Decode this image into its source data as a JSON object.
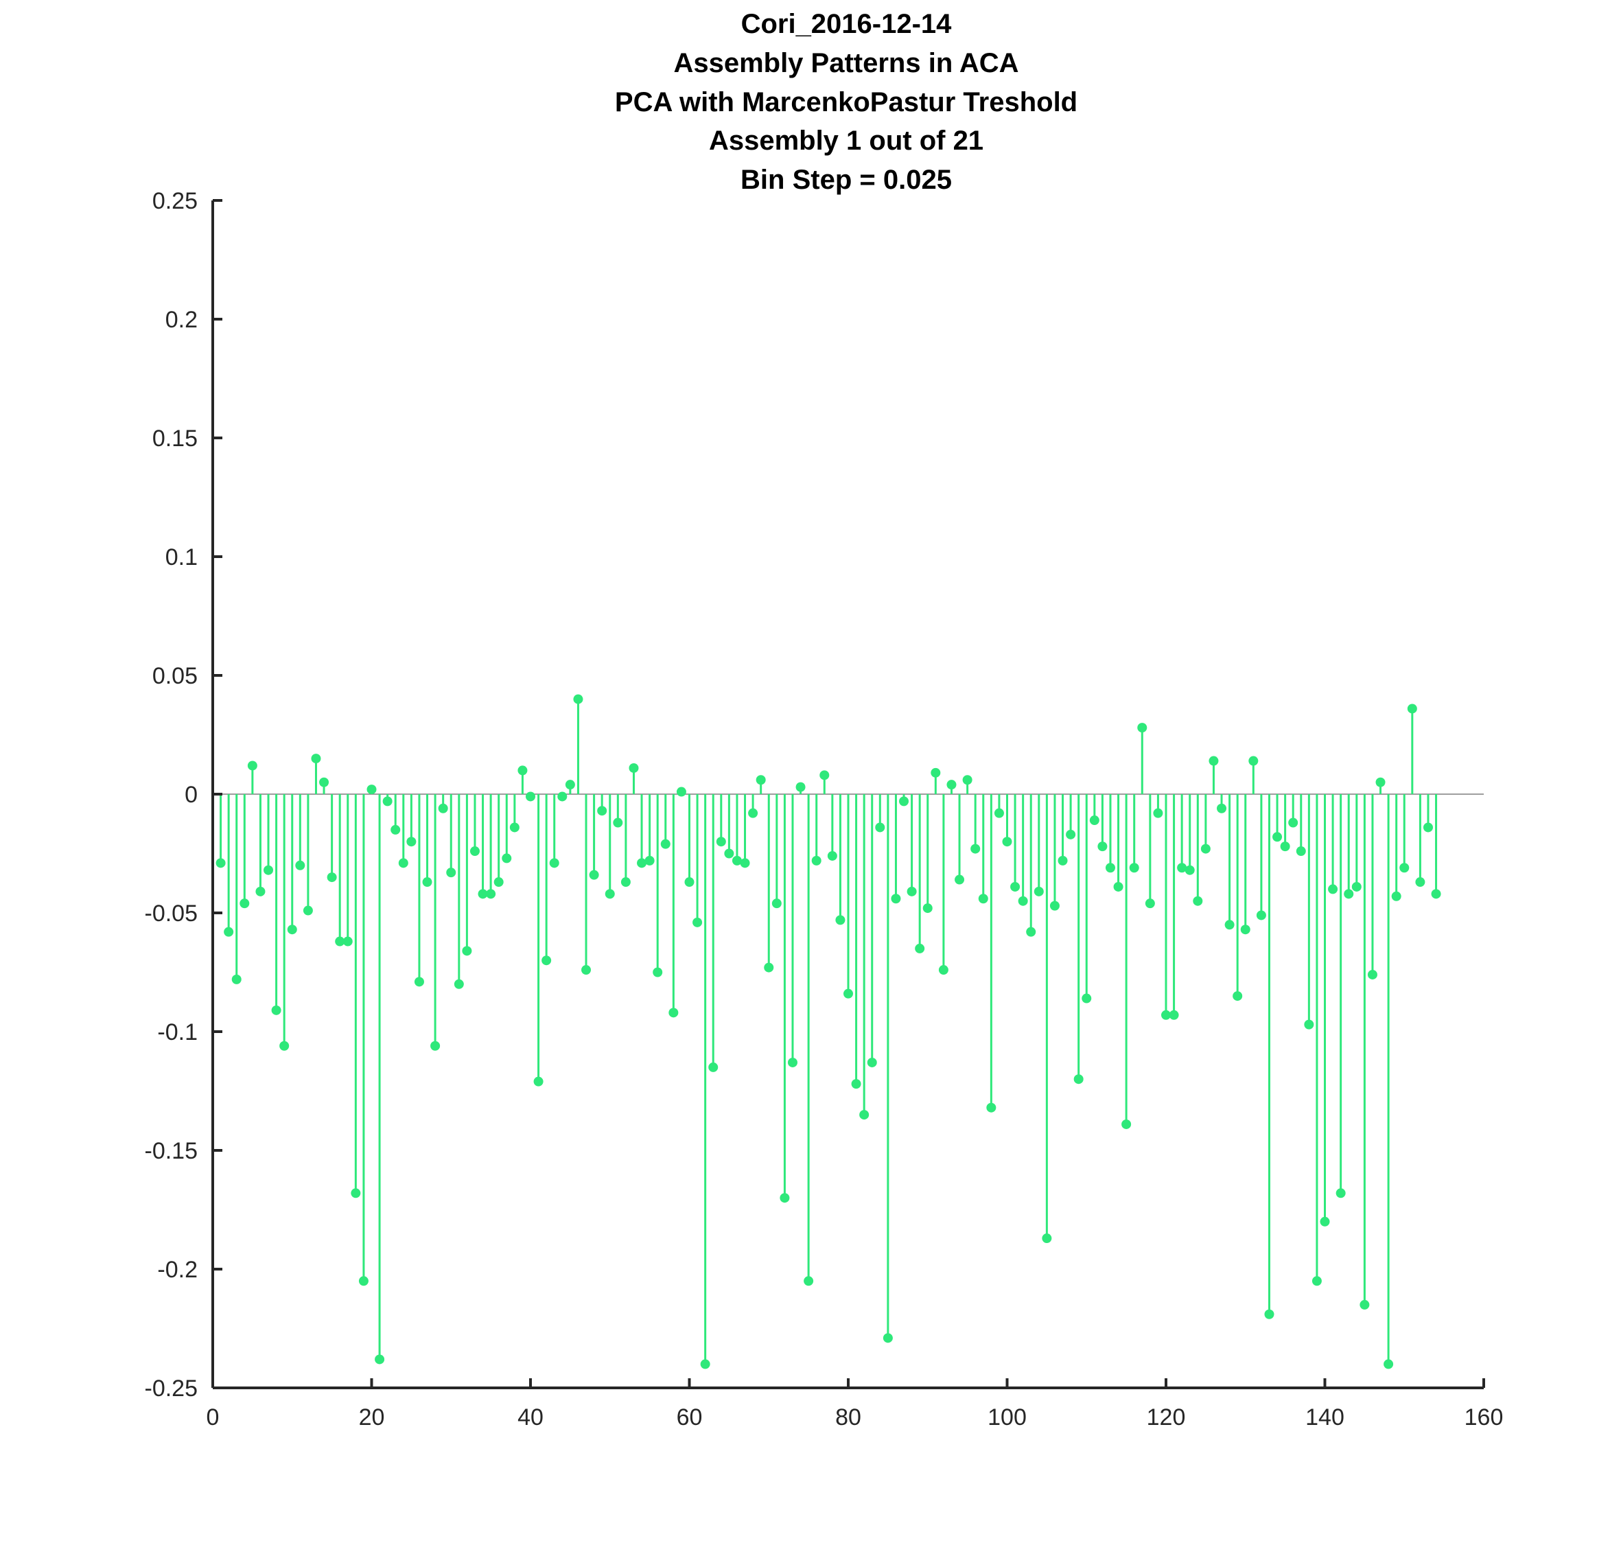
{
  "chart_data": {
    "type": "stem",
    "title_lines": [
      "Cori_2016-12-14",
      "Assembly Patterns in ACA",
      "PCA with MarcenkoPastur Treshold",
      "Assembly 1 out of 21",
      "Bin Step = 0.025"
    ],
    "xlabel": "",
    "ylabel": "",
    "xlim": [
      0,
      160
    ],
    "ylim": [
      -0.25,
      0.25
    ],
    "xticks": [
      0,
      20,
      40,
      60,
      80,
      100,
      120,
      140,
      160
    ],
    "xtick_labels": [
      "0",
      "20",
      "40",
      "60",
      "80",
      "100",
      "120",
      "140",
      "160"
    ],
    "yticks": [
      -0.25,
      -0.2,
      -0.15,
      -0.1,
      -0.05,
      0,
      0.05,
      0.1,
      0.15,
      0.2,
      0.25
    ],
    "ytick_labels": [
      "-0.25",
      "-0.2",
      "-0.15",
      "-0.1",
      "-0.05",
      "0",
      "0.05",
      "0.1",
      "0.15",
      "0.2",
      "0.25"
    ],
    "grid": false,
    "series_color": "#2ee87a",
    "baseline_color": "#7f7f7f",
    "axis_color": "#262626",
    "x": [
      1,
      2,
      3,
      4,
      5,
      6,
      7,
      8,
      9,
      10,
      11,
      12,
      13,
      14,
      15,
      16,
      17,
      18,
      19,
      20,
      21,
      22,
      23,
      24,
      25,
      26,
      27,
      28,
      29,
      30,
      31,
      32,
      33,
      34,
      35,
      36,
      37,
      38,
      39,
      40,
      41,
      42,
      43,
      44,
      45,
      46,
      47,
      48,
      49,
      50,
      51,
      52,
      53,
      54,
      55,
      56,
      57,
      58,
      59,
      60,
      61,
      62,
      63,
      64,
      65,
      66,
      67,
      68,
      69,
      70,
      71,
      72,
      73,
      74,
      75,
      76,
      77,
      78,
      79,
      80,
      81,
      82,
      83,
      84,
      85,
      86,
      87,
      88,
      89,
      90,
      91,
      92,
      93,
      94,
      95,
      96,
      97,
      98,
      99,
      100,
      101,
      102,
      103,
      104,
      105,
      106,
      107,
      108,
      109,
      110,
      111,
      112,
      113,
      114,
      115,
      116,
      117,
      118,
      119,
      120,
      121,
      122,
      123,
      124,
      125,
      126,
      127,
      128,
      129,
      130,
      131,
      132,
      133,
      134,
      135,
      136,
      137,
      138,
      139,
      140,
      141,
      142,
      143,
      144,
      145,
      146,
      147,
      148,
      149,
      150,
      151,
      152,
      153,
      154
    ],
    "values": [
      -0.029,
      -0.058,
      -0.078,
      -0.046,
      0.012,
      -0.041,
      -0.032,
      -0.091,
      -0.106,
      -0.057,
      -0.03,
      -0.049,
      0.015,
      0.005,
      -0.035,
      -0.062,
      -0.062,
      -0.168,
      -0.205,
      0.002,
      -0.238,
      -0.003,
      -0.015,
      -0.029,
      -0.02,
      -0.079,
      -0.037,
      -0.106,
      -0.006,
      -0.033,
      -0.08,
      -0.066,
      -0.024,
      -0.042,
      -0.042,
      -0.037,
      -0.027,
      -0.014,
      0.01,
      -0.001,
      -0.121,
      -0.07,
      -0.029,
      -0.001,
      0.004,
      0.04,
      -0.074,
      -0.034,
      -0.007,
      -0.042,
      -0.012,
      -0.037,
      0.011,
      -0.029,
      -0.028,
      -0.075,
      -0.021,
      -0.092,
      0.001,
      -0.037,
      -0.054,
      -0.24,
      -0.115,
      -0.02,
      -0.025,
      -0.028,
      -0.029,
      -0.008,
      0.006,
      -0.073,
      -0.046,
      -0.17,
      -0.113,
      0.003,
      -0.205,
      -0.028,
      0.008,
      -0.026,
      -0.053,
      -0.084,
      -0.122,
      -0.135,
      -0.113,
      -0.014,
      -0.229,
      -0.044,
      -0.003,
      -0.041,
      -0.065,
      -0.048,
      0.009,
      -0.074,
      0.004,
      -0.036,
      0.006,
      -0.023,
      -0.044,
      -0.132,
      -0.008,
      -0.02,
      -0.039,
      -0.045,
      -0.058,
      -0.041,
      -0.187,
      -0.047,
      -0.028,
      -0.017,
      -0.12,
      -0.086,
      -0.011,
      -0.022,
      -0.031,
      -0.039,
      -0.139,
      -0.031,
      0.028,
      -0.046,
      -0.008,
      -0.093,
      -0.093,
      -0.031,
      -0.032,
      -0.045,
      -0.023,
      0.014,
      -0.006,
      -0.055,
      -0.085,
      -0.057,
      0.014,
      -0.051,
      -0.219,
      -0.018,
      -0.022,
      -0.012,
      -0.024,
      -0.097,
      -0.205,
      -0.18,
      -0.04,
      -0.168,
      -0.042,
      -0.039,
      -0.215,
      -0.076,
      0.005,
      -0.24,
      -0.043,
      -0.031,
      0.036,
      -0.037,
      -0.014,
      -0.042
    ]
  }
}
